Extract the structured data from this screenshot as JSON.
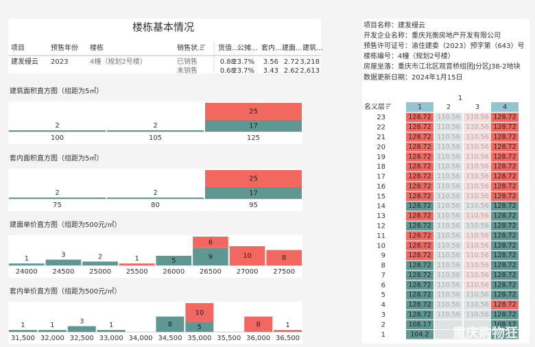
{
  "summary_table": {
    "title": "楼栋基本情况",
    "headers": [
      "项目",
      "预售年份",
      "楼栋",
      "销售状...",
      "货值...",
      "公摊...",
      "套内...",
      "建面...",
      "建筑..."
    ],
    "project": "建发缦云",
    "year": "2023",
    "building": "4幢（规划2号楼）",
    "status_rows": [
      [
        "已销售",
        "0.88",
        "23.7%",
        "3.56",
        "2.72",
        "3,218"
      ],
      [
        "未销售",
        "0.68",
        "23.7%",
        "3.43",
        "2.62",
        "2,613"
      ]
    ]
  },
  "chart_data": [
    {
      "type": "bar",
      "title": "建筑面积直方图（组距为5㎡）",
      "categories": [
        100,
        105,
        125
      ],
      "series": [
        {
          "color": "#5f9793",
          "values": [
            2,
            2,
            17
          ]
        },
        {
          "color": "#f2675f",
          "values": [
            null,
            null,
            25
          ]
        }
      ]
    },
    {
      "type": "bar",
      "title": "套内面积直方图（组距为5㎡）",
      "categories": [
        75,
        80,
        95
      ],
      "series": [
        {
          "color": "#5f9793",
          "values": [
            2,
            2,
            17
          ]
        },
        {
          "color": "#f2675f",
          "values": [
            null,
            null,
            25
          ]
        }
      ]
    },
    {
      "type": "bar",
      "title": "建面单价直方图（组距为500元/㎡）",
      "categories": [
        24000,
        24500,
        25000,
        25500,
        26000,
        26500,
        27000,
        27500
      ],
      "series": [
        {
          "color": "#5f9793",
          "values": [
            1,
            3,
            2,
            null,
            5,
            9,
            null,
            null
          ]
        },
        {
          "color": "#f2675f",
          "values": [
            null,
            null,
            null,
            1,
            null,
            6,
            10,
            8
          ]
        }
      ]
    },
    {
      "type": "bar",
      "title": "套内单价直方图（组距为500元/㎡）",
      "categories": [
        "31,500",
        "32,000",
        "32,500",
        "33,000",
        "34,000",
        "34,500",
        "35,000",
        "35,500",
        "36,000",
        "36,500"
      ],
      "series": [
        {
          "color": "#5f9793",
          "values": [
            1,
            1,
            3,
            1,
            null,
            8,
            5,
            null,
            null,
            null
          ]
        },
        {
          "color": "#f2675f",
          "values": [
            null,
            null,
            null,
            null,
            null,
            null,
            10,
            null,
            8,
            1
          ]
        }
      ]
    }
  ],
  "info": [
    "项目名称：建发缦云",
    "开发企业名称：重庆兆衡房地产开发有限公司",
    "预售许可证号：渝住建委（2023）预字第（643）号",
    "楼栋编号：4幢（规划2号楼）",
    "房屋坐落：重庆市江北区观音桥组团J分区J38-2地块"
  ],
  "update_date": "数据更新日期：2024年1月15日",
  "floor_grid": {
    "unit": "1",
    "floor_header": "名义层",
    "columns": [
      "1",
      "2",
      "3",
      "4"
    ],
    "column_colors": [
      "#92c5cf",
      "#ffffff",
      "#ffffff",
      "#92c5cf"
    ],
    "palette": {
      "sold": "#f2675f",
      "unsold": "#5f9793",
      "sold_faded": "#f8dcdb",
      "unsold_faded": "#dde3e3"
    },
    "rows": [
      {
        "floor": "23",
        "cells": [
          "128.72",
          "110.56",
          "110.56",
          "128.72"
        ],
        "status": [
          "sold",
          "unsold_faded",
          "sold_faded",
          "sold"
        ]
      },
      {
        "floor": "22",
        "cells": [
          "128.72",
          "110.56",
          "110.56",
          "128.72"
        ],
        "status": [
          "sold",
          "unsold_faded",
          "sold_faded",
          "sold"
        ]
      },
      {
        "floor": "21",
        "cells": [
          "128.72",
          "110.56",
          "110.56",
          "128.72"
        ],
        "status": [
          "sold",
          "unsold_faded",
          "sold_faded",
          "sold"
        ]
      },
      {
        "floor": "20",
        "cells": [
          "128.72",
          "110.56",
          "110.56",
          "128.72"
        ],
        "status": [
          "sold",
          "unsold_faded",
          "sold_faded",
          "sold"
        ]
      },
      {
        "floor": "19",
        "cells": [
          "128.72",
          "110.56",
          "110.56",
          "128.72"
        ],
        "status": [
          "sold",
          "unsold_faded",
          "sold_faded",
          "sold"
        ]
      },
      {
        "floor": "18",
        "cells": [
          "128.72",
          "110.56",
          "110.56",
          "128.72"
        ],
        "status": [
          "sold",
          "unsold_faded",
          "sold_faded",
          "sold"
        ]
      },
      {
        "floor": "17",
        "cells": [
          "128.72",
          "110.56",
          "110.56",
          "128.72"
        ],
        "status": [
          "sold",
          "unsold_faded",
          "sold_faded",
          "sold"
        ]
      },
      {
        "floor": "16",
        "cells": [
          "128.72",
          "110.56",
          "110.56",
          "128.72"
        ],
        "status": [
          "sold",
          "unsold_faded",
          "sold_faded",
          "sold"
        ]
      },
      {
        "floor": "15",
        "cells": [
          "128.72",
          "110.56",
          "110.56",
          "128.72"
        ],
        "status": [
          "sold",
          "unsold_faded",
          "sold_faded",
          "sold"
        ]
      },
      {
        "floor": "14",
        "cells": [
          "128.72",
          "110.56",
          "110.56",
          "128.72"
        ],
        "status": [
          "unsold",
          "unsold_faded",
          "unsold_faded",
          "unsold"
        ]
      },
      {
        "floor": "13",
        "cells": [
          "128.72",
          "110.56",
          "110.56",
          "128.72"
        ],
        "status": [
          "sold",
          "unsold_faded",
          "sold_faded",
          "unsold"
        ]
      },
      {
        "floor": "12",
        "cells": [
          "128.72",
          "110.56",
          "110.56",
          "128.72"
        ],
        "status": [
          "unsold",
          "unsold_faded",
          "unsold_faded",
          "unsold"
        ]
      },
      {
        "floor": "11",
        "cells": [
          "128.72",
          "110.56",
          "110.56",
          "128.72"
        ],
        "status": [
          "sold",
          "unsold_faded",
          "sold_faded",
          "unsold"
        ]
      },
      {
        "floor": "10",
        "cells": [
          "128.72",
          "110.56",
          "110.56",
          "128.72"
        ],
        "status": [
          "sold",
          "unsold_faded",
          "sold_faded",
          "unsold"
        ]
      },
      {
        "floor": "9",
        "cells": [
          "128.72",
          "110.56",
          "110.56",
          "128.72"
        ],
        "status": [
          "sold",
          "unsold_faded",
          "sold_faded",
          "unsold"
        ]
      },
      {
        "floor": "8",
        "cells": [
          "128.72",
          "110.56",
          "110.56",
          "128.72"
        ],
        "status": [
          "unsold",
          "unsold_faded",
          "sold_faded",
          "unsold"
        ]
      },
      {
        "floor": "7",
        "cells": [
          "128.72",
          "110.56",
          "110.56",
          "128.72"
        ],
        "status": [
          "unsold",
          "unsold_faded",
          "sold_faded",
          "unsold"
        ]
      },
      {
        "floor": "6",
        "cells": [
          "128.72",
          "110.56",
          "110.56",
          "128.72"
        ],
        "status": [
          "unsold",
          "unsold_faded",
          "sold_faded",
          "unsold"
        ]
      },
      {
        "floor": "5",
        "cells": [
          "128.72",
          "110.56",
          "110.56",
          "128.72"
        ],
        "status": [
          "unsold",
          "unsold_faded",
          "unsold_faded",
          "unsold"
        ]
      },
      {
        "floor": "4",
        "cells": [
          "128.72",
          "110.56",
          "110.56",
          "128.72"
        ],
        "status": [
          "unsold",
          "unsold_faded",
          "unsold_faded",
          "sold"
        ]
      },
      {
        "floor": "3",
        "cells": [
          "128.72",
          "110.56",
          "110.56",
          "128.72"
        ],
        "status": [
          "unsold",
          "unsold_faded",
          "unsold_faded",
          "unsold"
        ]
      },
      {
        "floor": "2",
        "cells": [
          "108.17",
          null,
          null,
          "108.17"
        ],
        "status": [
          "unsold",
          "unsold_faded",
          "unsold_faded",
          "unsold"
        ]
      },
      {
        "floor": "1",
        "cells": [
          "104.2",
          null,
          null,
          null
        ],
        "status": [
          "unsold",
          "unsold_faded",
          "unsold_faded",
          "unsold"
        ]
      }
    ]
  },
  "watermark": "重庆购物狂"
}
